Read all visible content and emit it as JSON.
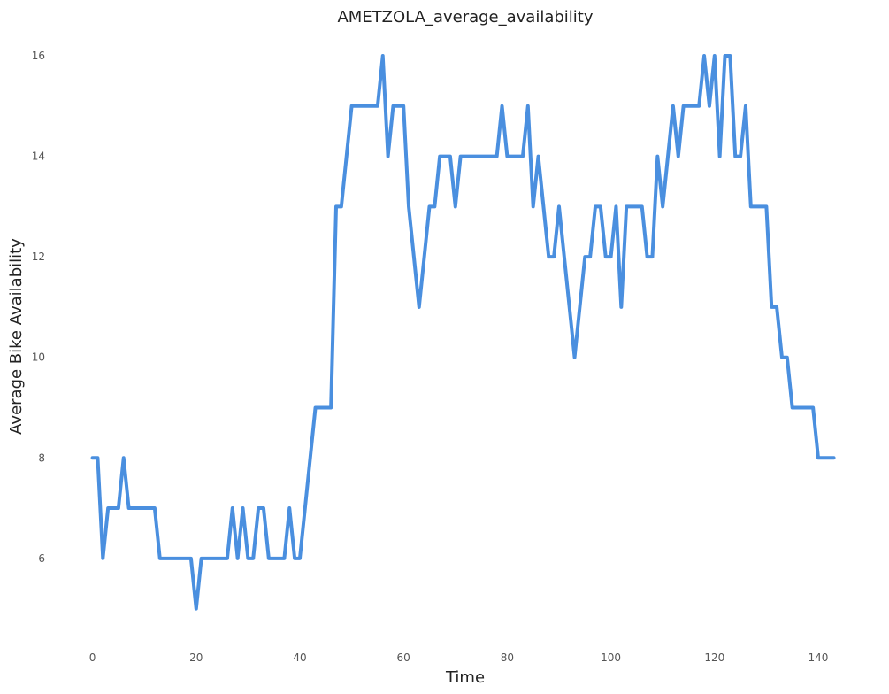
{
  "chart_data": {
    "type": "line",
    "title": "AMETZOLA_average_availability",
    "xlabel": "Time",
    "ylabel": "Average Bike Availability",
    "xlim": [
      -3,
      147
    ],
    "ylim": [
      4.5,
      16.3
    ],
    "xticks": [
      0,
      20,
      40,
      60,
      80,
      100,
      120,
      140
    ],
    "yticks": [
      6,
      8,
      10,
      12,
      14,
      16
    ],
    "grid": false,
    "line_color": "#4a8fdf",
    "x": [
      0,
      1,
      2,
      3,
      4,
      5,
      6,
      7,
      8,
      9,
      10,
      11,
      12,
      13,
      14,
      15,
      16,
      17,
      18,
      19,
      20,
      21,
      22,
      23,
      24,
      25,
      26,
      27,
      28,
      29,
      30,
      31,
      32,
      33,
      34,
      35,
      36,
      37,
      38,
      39,
      40,
      41,
      42,
      43,
      44,
      45,
      46,
      47,
      48,
      49,
      50,
      51,
      52,
      53,
      54,
      55,
      56,
      57,
      58,
      59,
      60,
      61,
      62,
      63,
      64,
      65,
      66,
      67,
      68,
      69,
      70,
      71,
      72,
      73,
      74,
      75,
      76,
      77,
      78,
      79,
      80,
      81,
      82,
      83,
      84,
      85,
      86,
      87,
      88,
      89,
      90,
      91,
      92,
      93,
      94,
      95,
      96,
      97,
      98,
      99,
      100,
      101,
      102,
      103,
      104,
      105,
      106,
      107,
      108,
      109,
      110,
      111,
      112,
      113,
      114,
      115,
      116,
      117,
      118,
      119,
      120,
      121,
      122,
      123,
      124,
      125,
      126,
      127,
      128,
      129,
      130,
      131,
      132,
      133,
      134,
      135,
      136,
      137,
      138,
      139,
      140,
      141,
      142,
      143
    ],
    "values": [
      8,
      8,
      6,
      7,
      7,
      7,
      8,
      7,
      7,
      7,
      7,
      7,
      7,
      6,
      6,
      6,
      6,
      6,
      6,
      6,
      5,
      6,
      6,
      6,
      6,
      6,
      6,
      7,
      6,
      7,
      6,
      6,
      7,
      7,
      6,
      6,
      6,
      6,
      7,
      6,
      6,
      7,
      8,
      9,
      9,
      9,
      9,
      13,
      13,
      14,
      15,
      15,
      15,
      15,
      15,
      15,
      16,
      14,
      15,
      15,
      15,
      13,
      12,
      11,
      12,
      13,
      13,
      14,
      14,
      14,
      13,
      14,
      14,
      14,
      14,
      14,
      14,
      14,
      14,
      15,
      14,
      14,
      14,
      14,
      15,
      13,
      14,
      13,
      12,
      12,
      13,
      12,
      11,
      10,
      11,
      12,
      12,
      13,
      13,
      12,
      12,
      13,
      11,
      13,
      13,
      13,
      13,
      12,
      12,
      14,
      13,
      14,
      15,
      14,
      15,
      15,
      15,
      15,
      16,
      15,
      16,
      14,
      16,
      16,
      14,
      14,
      15,
      13,
      13,
      13,
      13,
      11,
      11,
      10,
      10,
      9,
      9,
      9,
      9,
      9,
      8,
      8,
      8,
      8
    ]
  }
}
